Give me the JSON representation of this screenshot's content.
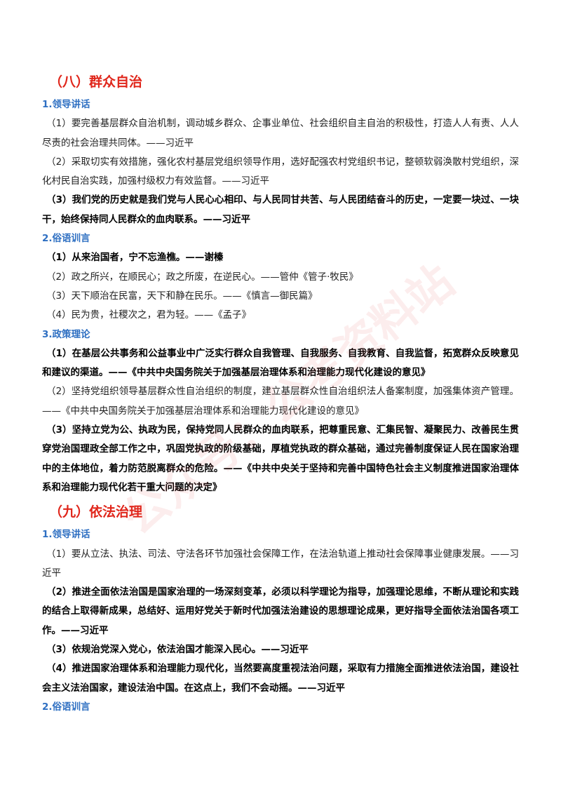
{
  "watermark": "公众号：公考资料站",
  "sections": [
    {
      "title": "（八）群众自治",
      "groups": [
        {
          "heading": "1.领导讲话",
          "items": [
            {
              "text": "（1）要完善基层群众自治机制，调动城乡群众、企事业单位、社会组织自主自治的积极性，打造人人有责、人人尽责的社会治理共同体。——习近平",
              "bold": false
            },
            {
              "text": "（2）采取切实有效措施，强化农村基层党组织领导作用，选好配强农村党组织书记，整顿软弱涣散村党组织，深化村民自治实践，加强村级权力有效监督。——习近平",
              "bold": false
            },
            {
              "text": "（3）我们党的历史就是我们党与人民心心相印、与人民同甘共苦、与人民团结奋斗的历史，一定要一块过、一块干，始终保持同人民群众的血肉联系。——习近平",
              "bold": true
            }
          ]
        },
        {
          "heading": "2.俗语训言",
          "items": [
            {
              "text": "（1）从来治国者，宁不忘渔樵。——谢榛",
              "bold": true
            },
            {
              "text": "（2）政之所兴，在顺民心；政之所废，在逆民心。——管仲《管子·牧民》",
              "bold": false
            },
            {
              "text": "（3）天下顺治在民富，天下和静在民乐。——《慎言—御民篇》",
              "bold": false
            },
            {
              "text": "（4）民为贵，社稷次之，君为轻。——《孟子》",
              "bold": false
            }
          ]
        },
        {
          "heading": "3.政策理论",
          "items": [
            {
              "text": "（1）在基层公共事务和公益事业中广泛实行群众自我管理、自我服务、自我教育、自我监督，拓宽群众反映意见和建议的渠道。——《中共中央国务院关于加强基层治理体系和治理能力现代化建设的意见》",
              "bold": true
            },
            {
              "text": "（2）坚持党组织领导基层群众性自治组织的制度，建立基层群众性自治组织法人备案制度，加强集体资产管理。——《中共中央国务院关于加强基层治理体系和治理能力现代化建设的意见》",
              "bold": false
            },
            {
              "text": "（3）坚持立党为公、执政为民，保持党同人民群众的血肉联系，把尊重民意、汇集民智、凝聚民力、改善民生贯穿党治国理政全部工作之中，巩固党执政的阶级基础，厚植党执政的群众基础，通过完善制度保证人民在国家治理中的主体地位，着力防范脱离群众的危险。——《中共中央关于坚持和完善中国特色社会主义制度推进国家治理体系和治理能力现代化若干重大问题的决定》",
              "bold": true
            }
          ]
        }
      ]
    },
    {
      "title": "（九）依法治理",
      "groups": [
        {
          "heading": "1.领导讲话",
          "items": [
            {
              "text": "（1）要从立法、执法、司法、守法各环节加强社会保障工作，在法治轨道上推动社会保障事业健康发展。——习近平",
              "bold": false
            },
            {
              "text": "（2）推进全面依法治国是国家治理的一场深刻变革，必须以科学理论为指导，加强理论思维，不断从理论和实践的结合上取得新成果，总结好、运用好党关于新时代加强法治建设的思想理论成果，更好指导全面依法治国各项工作。——习近平",
              "bold": true
            },
            {
              "text": "（3）依规治党深入党心，依法治国才能深入民心。——习近平",
              "bold": true
            },
            {
              "text": "（4）推进国家治理体系和治理能力现代化，当然要高度重视法治问题，采取有力措施全面推进依法治国，建设社会主义法治国家，建设法治中国。在这点上，我们不会动摇。——习近平",
              "bold": true
            }
          ]
        },
        {
          "heading": "2.俗语训言",
          "items": []
        }
      ]
    }
  ]
}
